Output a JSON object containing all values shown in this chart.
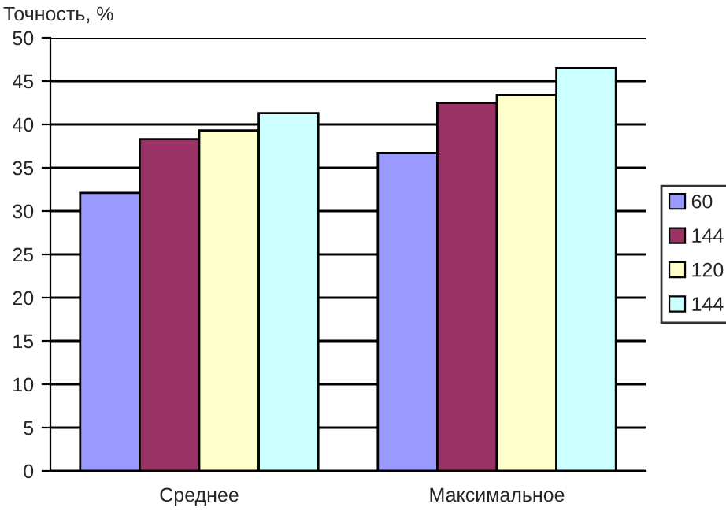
{
  "chart_data": {
    "type": "bar",
    "ylabel": "Точность, %",
    "categories": [
      "Среднее",
      "Максимальное"
    ],
    "series": [
      {
        "name": "60",
        "color": "#9999ff",
        "values": [
          32.1,
          36.7
        ]
      },
      {
        "name": "144",
        "color": "#993366",
        "values": [
          38.3,
          42.5
        ]
      },
      {
        "name": "120",
        "color": "#ffffcc",
        "values": [
          39.3,
          43.4
        ]
      },
      {
        "name": "144",
        "color": "#ccffff",
        "values": [
          41.3,
          46.5
        ]
      }
    ],
    "ylim": [
      0,
      50
    ],
    "yticks": [
      0,
      5,
      10,
      15,
      20,
      25,
      30,
      35,
      40,
      45,
      50
    ],
    "grid": "y",
    "legend": "right"
  }
}
